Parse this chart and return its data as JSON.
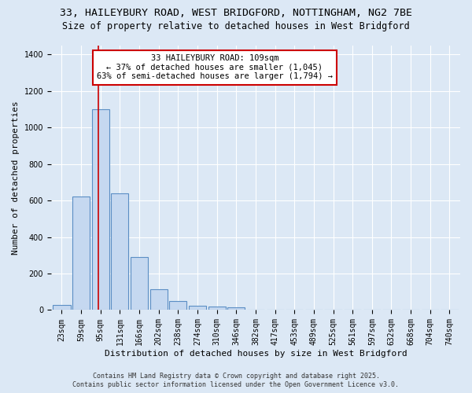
{
  "title_line1": "33, HAILEYBURY ROAD, WEST BRIDGFORD, NOTTINGHAM, NG2 7BE",
  "title_line2": "Size of property relative to detached houses in West Bridgford",
  "xlabel": "Distribution of detached houses by size in West Bridgford",
  "ylabel": "Number of detached properties",
  "bin_labels": [
    "23sqm",
    "59sqm",
    "95sqm",
    "131sqm",
    "166sqm",
    "202sqm",
    "238sqm",
    "274sqm",
    "310sqm",
    "346sqm",
    "382sqm",
    "417sqm",
    "453sqm",
    "489sqm",
    "525sqm",
    "561sqm",
    "597sqm",
    "632sqm",
    "668sqm",
    "704sqm",
    "740sqm"
  ],
  "bar_heights": [
    30,
    620,
    1100,
    640,
    290,
    115,
    50,
    25,
    20,
    15,
    0,
    0,
    0,
    0,
    0,
    0,
    0,
    0,
    0,
    0,
    0
  ],
  "bar_color": "#c5d8f0",
  "bar_edge_color": "#5b8ec4",
  "ylim": [
    0,
    1450
  ],
  "red_line_x": 1.9,
  "annotation_text": "33 HAILEYBURY ROAD: 109sqm\n← 37% of detached houses are smaller (1,045)\n63% of semi-detached houses are larger (1,794) →",
  "annotation_box_color": "#ffffff",
  "annotation_box_edge": "#cc0000",
  "red_line_color": "#cc0000",
  "footer_line1": "Contains HM Land Registry data © Crown copyright and database right 2025.",
  "footer_line2": "Contains public sector information licensed under the Open Government Licence v3.0.",
  "background_color": "#dce8f5",
  "plot_background": "#dce8f5",
  "grid_color": "#ffffff",
  "title_fontsize": 9.5,
  "subtitle_fontsize": 8.5,
  "axis_label_fontsize": 8,
  "tick_fontsize": 7,
  "annotation_fontsize": 7.5,
  "footer_fontsize": 6
}
